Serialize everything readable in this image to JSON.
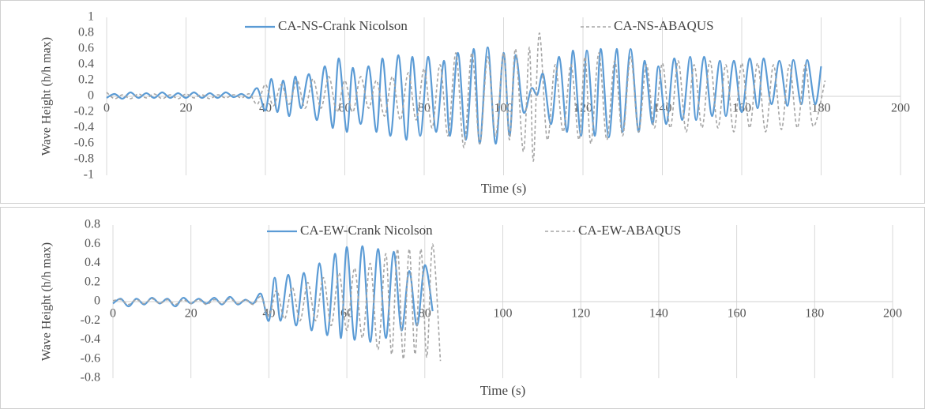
{
  "chart_data": [
    {
      "type": "line",
      "xlabel": "Time (s)",
      "ylabel": "Wave Height (h/h max)",
      "xlim": [
        0,
        200
      ],
      "ylim": [
        -1,
        1
      ],
      "xticks": [
        0,
        20,
        40,
        60,
        80,
        100,
        120,
        140,
        160,
        180,
        200
      ],
      "yticks": [
        -1,
        -0.8,
        -0.6,
        -0.4,
        -0.2,
        0,
        0.2,
        0.4,
        0.6,
        0.8,
        1
      ],
      "grid": "x",
      "legend": "top",
      "series": [
        {
          "name": "CA-NS-Crank Nicolson",
          "color": "#5b9bd5",
          "dash": "solid",
          "x": [
            0,
            2,
            4,
            6,
            8,
            10,
            12,
            14,
            16,
            18,
            20,
            22,
            24,
            26,
            28,
            30,
            32,
            34,
            36,
            38,
            40,
            41.5,
            43,
            44.5,
            46,
            47.5,
            49,
            51,
            53,
            55,
            57,
            58.5,
            60.5,
            62,
            64,
            66,
            68,
            69.5,
            71.5,
            73.5,
            75.5,
            77,
            79,
            81,
            83,
            85,
            86.5,
            88.5,
            90.5,
            92.5,
            94,
            96,
            98,
            100,
            101.5,
            103,
            105,
            107,
            108.5,
            110,
            112,
            114,
            116,
            117.5,
            119.5,
            121,
            123,
            124.5,
            126.5,
            128.5,
            130,
            132,
            134,
            135.5,
            137.5,
            139,
            141,
            143,
            145,
            147,
            148.5,
            150.5,
            152.5,
            154.5,
            156,
            158,
            160,
            162,
            164,
            165.5,
            167.5,
            169.5,
            171.5,
            173,
            175,
            176.5,
            178.5,
            180
          ],
          "values": [
            -0.02,
            0.03,
            -0.03,
            0.05,
            -0.02,
            0.04,
            -0.02,
            0.05,
            -0.02,
            0.04,
            -0.02,
            0.05,
            -0.02,
            0.04,
            -0.02,
            0.05,
            -0.01,
            0.03,
            -0.02,
            0.1,
            -0.18,
            0.22,
            -0.2,
            0.2,
            -0.25,
            0.25,
            -0.15,
            0.28,
            -0.3,
            0.38,
            -0.4,
            0.48,
            -0.45,
            0.36,
            -0.35,
            0.38,
            -0.45,
            0.48,
            -0.5,
            0.52,
            -0.55,
            0.5,
            -0.5,
            0.5,
            -0.45,
            0.45,
            -0.5,
            0.55,
            -0.55,
            0.6,
            -0.6,
            0.62,
            -0.6,
            0.55,
            -0.5,
            0.52,
            -0.2,
            0.1,
            0.02,
            0.28,
            -0.35,
            0.5,
            -0.45,
            0.58,
            -0.5,
            0.58,
            -0.5,
            0.6,
            -0.52,
            0.6,
            -0.45,
            0.6,
            -0.45,
            0.45,
            -0.35,
            0.38,
            -0.35,
            0.48,
            -0.3,
            0.5,
            -0.3,
            0.5,
            -0.25,
            0.45,
            -0.25,
            0.45,
            -0.2,
            0.48,
            -0.15,
            0.48,
            -0.1,
            0.45,
            -0.12,
            0.46,
            -0.1,
            0.46,
            -0.1,
            0.38
          ]
        },
        {
          "name": "CA-NS-ABAQUS",
          "color": "#a5a5a5",
          "dash": "dashed",
          "x": [
            0,
            2,
            4,
            6,
            8,
            10,
            12,
            14,
            16,
            18,
            20,
            22,
            24,
            26,
            28,
            30,
            32,
            34,
            36,
            38,
            40,
            42,
            44,
            46,
            48,
            50,
            52,
            54,
            56,
            58,
            60,
            62,
            64,
            66,
            68,
            70,
            72,
            74,
            76,
            78,
            80,
            82,
            84,
            86,
            88,
            90,
            92,
            94,
            96,
            98,
            100,
            101.5,
            103,
            105,
            106.5,
            107.5,
            109,
            111,
            113,
            115,
            117,
            119,
            120.5,
            122,
            124,
            126,
            128,
            130,
            132,
            134,
            136,
            138,
            140,
            142,
            144,
            146,
            148,
            150,
            152,
            154,
            156,
            158,
            160,
            162,
            164,
            166,
            168,
            170,
            172,
            174,
            176,
            178,
            181
          ],
          "values": [
            0.05,
            -0.03,
            0.02,
            -0.03,
            0.03,
            -0.02,
            0.03,
            -0.03,
            0.02,
            -0.03,
            0.03,
            -0.02,
            0.02,
            -0.03,
            0.02,
            -0.02,
            0.02,
            -0.02,
            0.03,
            -0.1,
            0.15,
            -0.12,
            0.15,
            -0.1,
            0.2,
            -0.15,
            0.22,
            -0.15,
            0.25,
            -0.2,
            0.2,
            -0.2,
            0.25,
            -0.15,
            0.2,
            -0.25,
            0.25,
            -0.3,
            0.3,
            -0.3,
            0.35,
            -0.4,
            0.4,
            -0.5,
            0.55,
            -0.65,
            0.55,
            -0.6,
            0.5,
            -0.5,
            0.55,
            -0.55,
            0.6,
            -0.7,
            0.62,
            -0.82,
            0.8,
            -0.55,
            0.4,
            -0.45,
            0.4,
            -0.55,
            0.5,
            -0.6,
            0.55,
            -0.55,
            0.45,
            -0.5,
            0.5,
            -0.45,
            0.4,
            -0.4,
            0.42,
            -0.4,
            0.45,
            -0.45,
            0.4,
            -0.4,
            0.45,
            -0.4,
            0.4,
            -0.45,
            0.42,
            -0.4,
            0.42,
            -0.45,
            0.4,
            -0.42,
            0.4,
            -0.4,
            0.4,
            -0.38,
            0.2
          ]
        }
      ]
    },
    {
      "type": "line",
      "xlabel": "Time (s)",
      "ylabel": "Wave Height (h/h max)",
      "xlim": [
        0,
        200
      ],
      "ylim": [
        -0.8,
        0.8
      ],
      "xticks": [
        0,
        20,
        40,
        60,
        80,
        100,
        120,
        140,
        160,
        180,
        200
      ],
      "yticks": [
        -0.8,
        -0.6,
        -0.4,
        -0.2,
        0,
        0.2,
        0.4,
        0.6,
        0.8
      ],
      "grid": "x",
      "legend": "top",
      "series": [
        {
          "name": "CA-EW-Crank Nicolson",
          "color": "#5b9bd5",
          "dash": "solid",
          "x": [
            0,
            2,
            4,
            6,
            8,
            10,
            12,
            14,
            16,
            18,
            20,
            22,
            24,
            26,
            28,
            30,
            32,
            34,
            36,
            38,
            40,
            41.5,
            43,
            45,
            47,
            49,
            51,
            53,
            55,
            57,
            58.5,
            60,
            62,
            64,
            66,
            68,
            70,
            72,
            74,
            76,
            78,
            80,
            82
          ],
          "values": [
            -0.02,
            0.03,
            -0.05,
            0.03,
            -0.03,
            0.04,
            -0.02,
            0.03,
            -0.05,
            0.04,
            -0.02,
            0.03,
            -0.02,
            0.04,
            -0.03,
            0.05,
            -0.03,
            0.02,
            -0.02,
            0.08,
            -0.2,
            0.25,
            -0.2,
            0.28,
            -0.25,
            0.3,
            -0.3,
            0.4,
            -0.35,
            0.5,
            -0.38,
            0.57,
            -0.4,
            0.58,
            -0.42,
            0.55,
            -0.38,
            0.52,
            -0.3,
            0.32,
            -0.25,
            0.38,
            -0.1
          ]
        },
        {
          "name": "CA-EW-ABAQUS",
          "color": "#a5a5a5",
          "dash": "dashed",
          "x": [
            0,
            2,
            4,
            6,
            8,
            10,
            12,
            14,
            16,
            18,
            20,
            22,
            24,
            26,
            28,
            30,
            32,
            34,
            36,
            38,
            40,
            42,
            44,
            46,
            48,
            50,
            52,
            54,
            56,
            58,
            60,
            62,
            64,
            66,
            68,
            70,
            71.5,
            73,
            74.5,
            76,
            77.5,
            79,
            80.5,
            82,
            84
          ],
          "values": [
            0.01,
            0.02,
            -0.03,
            0.02,
            -0.02,
            0.03,
            -0.02,
            0.02,
            -0.03,
            0.02,
            -0.02,
            0.02,
            -0.03,
            0.02,
            -0.02,
            0.03,
            -0.02,
            0.02,
            -0.03,
            0.05,
            -0.15,
            0.12,
            -0.18,
            0.15,
            -0.2,
            0.2,
            -0.2,
            0.25,
            -0.25,
            0.3,
            -0.3,
            0.35,
            -0.38,
            0.4,
            -0.5,
            0.5,
            -0.55,
            0.55,
            -0.6,
            0.55,
            -0.55,
            0.55,
            -0.58,
            0.6,
            -0.62
          ]
        }
      ]
    }
  ]
}
